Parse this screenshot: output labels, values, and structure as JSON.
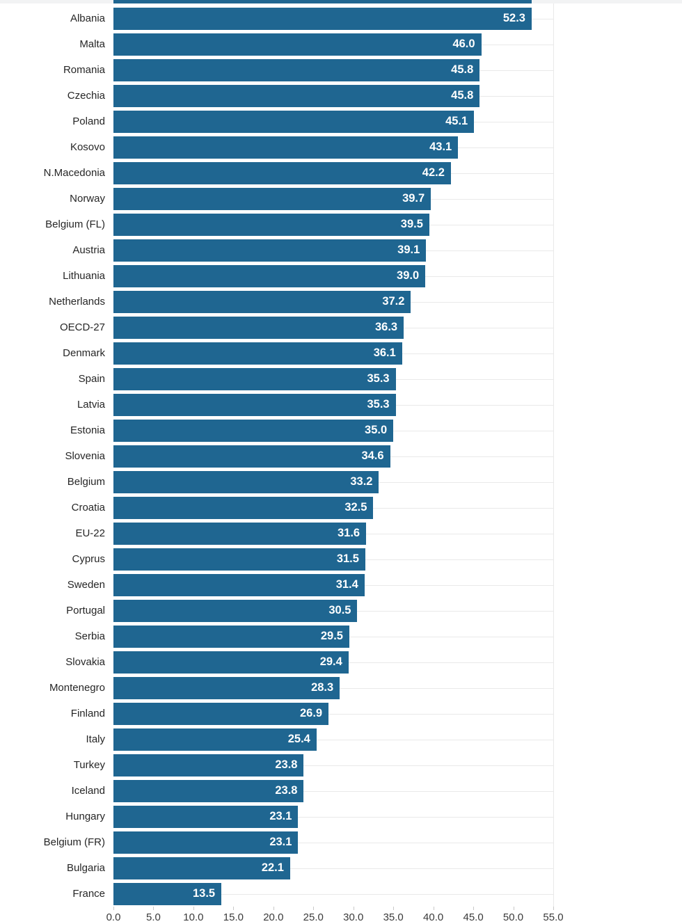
{
  "chart_data": {
    "type": "bar",
    "orientation": "horizontal",
    "title": "",
    "xlabel": "",
    "ylabel": "",
    "categories": [
      "Albania",
      "Malta",
      "Romania",
      "Czechia",
      "Poland",
      "Kosovo",
      "N.Macedonia",
      "Norway",
      "Belgium (FL)",
      "Austria",
      "Lithuania",
      "Netherlands",
      "OECD-27",
      "Denmark",
      "Spain",
      "Latvia",
      "Estonia",
      "Slovenia",
      "Belgium",
      "Croatia",
      "EU-22",
      "Cyprus",
      "Sweden",
      "Portugal",
      "Serbia",
      "Slovakia",
      "Montenegro",
      "Finland",
      "Italy",
      "Turkey",
      "Iceland",
      "Hungary",
      "Belgium (FR)",
      "Bulgaria",
      "France"
    ],
    "values": [
      52.3,
      46.0,
      45.8,
      45.8,
      45.1,
      43.1,
      42.2,
      39.7,
      39.5,
      39.1,
      39.0,
      37.2,
      36.3,
      36.1,
      35.3,
      35.3,
      35.0,
      34.6,
      33.2,
      32.5,
      31.6,
      31.5,
      31.4,
      30.5,
      29.5,
      29.4,
      28.3,
      26.9,
      25.4,
      23.8,
      23.8,
      23.1,
      23.1,
      22.1,
      13.5
    ],
    "value_label_decimals": 1,
    "xlim": [
      0,
      55
    ],
    "x_ticks": [
      0,
      5,
      10,
      15,
      20,
      25,
      30,
      35,
      40,
      45,
      50,
      55
    ],
    "x_tick_labels": [
      "0.0",
      "5.0",
      "10.0",
      "15.0",
      "20.0",
      "25.0",
      "30.0",
      "35.0",
      "40.0",
      "45.0",
      "50.0",
      "55.0"
    ],
    "legend": "none",
    "grid": "faint horizontal line at each row center, plot right edge at 55",
    "colors": {
      "bar": "#1f6691",
      "value_label": "#ffffff",
      "category_label": "#262626",
      "axis_label": "#3a3a3a",
      "gridline": "#e9e9e9",
      "tick_mark": "#c9c9c9",
      "top_sliver_background": "#f2f3f4"
    }
  }
}
